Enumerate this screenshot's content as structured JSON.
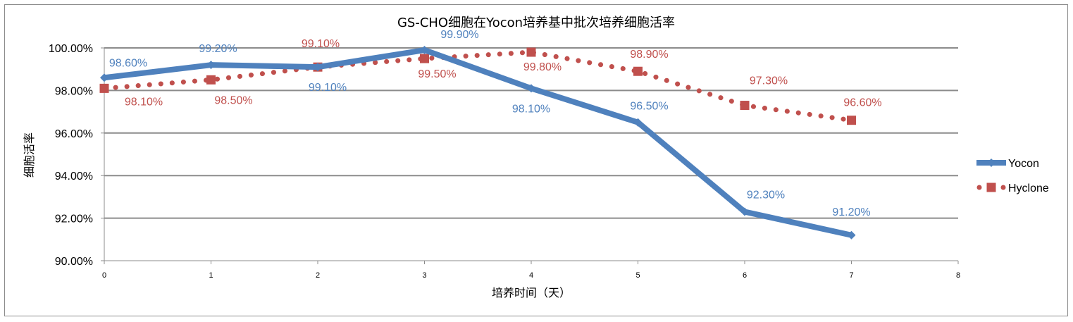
{
  "chart_data": {
    "type": "line",
    "title": "GS-CHO细胞在Yocon培养基中批次培养细胞活率",
    "xlabel": "培养时间（天）",
    "ylabel": "细胞活率",
    "x": [
      0,
      1,
      2,
      3,
      4,
      5,
      6,
      7
    ],
    "xlim": [
      0,
      8
    ],
    "xticks": [
      "0",
      "1",
      "2",
      "3",
      "4",
      "5",
      "6",
      "7",
      "8"
    ],
    "ylim": [
      90,
      100
    ],
    "yticks": [
      "90.00%",
      "92.00%",
      "94.00%",
      "96.00%",
      "98.00%",
      "100.00%"
    ],
    "grid": true,
    "legend_position": "right",
    "series": [
      {
        "name": "Yocon",
        "color": "#4f81bd",
        "label_color": "#4f81bd",
        "values": [
          98.6,
          99.2,
          99.1,
          99.9,
          98.1,
          96.5,
          92.3,
          91.2
        ],
        "labels": [
          "98.60%",
          "99.20%",
          "99.10%",
          "99.90%",
          "98.10%",
          "96.50%",
          "92.30%",
          "91.20%"
        ]
      },
      {
        "name": "Hyclone",
        "color": "#c0504d",
        "label_color": "#c0504d",
        "values": [
          98.1,
          98.5,
          99.1,
          99.5,
          99.8,
          98.9,
          97.3,
          96.6
        ],
        "labels": [
          "98.10%",
          "98.50%",
          "99.10%",
          "99.50%",
          "99.80%",
          "98.90%",
          "97.30%",
          "96.60%"
        ]
      }
    ]
  }
}
